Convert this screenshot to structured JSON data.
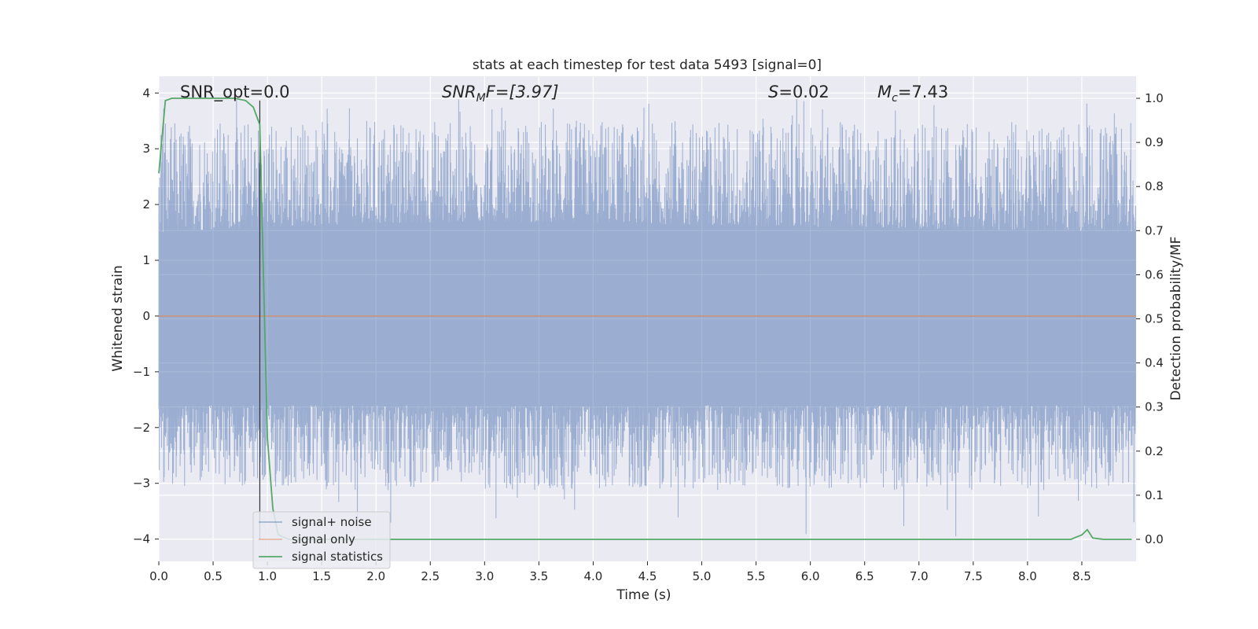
{
  "chart_data": {
    "type": "line",
    "title": "stats at each timestep for test data 5493 [signal=0]",
    "xlabel": "Time (s)",
    "ylabel": "Whitened strain",
    "ylabel_right": "Detection probability/MF",
    "xlim": [
      0.0,
      9.0
    ],
    "ylim": [
      -4.4,
      4.3
    ],
    "ylim_right": [
      -0.05,
      1.05
    ],
    "x_ticks": [
      "0.0",
      "0.5",
      "1.0",
      "1.5",
      "2.0",
      "2.5",
      "3.0",
      "3.5",
      "4.0",
      "4.5",
      "5.0",
      "5.5",
      "6.0",
      "6.5",
      "7.0",
      "7.5",
      "8.0",
      "8.5"
    ],
    "y_ticks": [
      "4",
      "3",
      "2",
      "1",
      "0",
      "−1",
      "−2",
      "−3",
      "−4"
    ],
    "y_ticks_right": [
      "1.0",
      "0.9",
      "0.8",
      "0.7",
      "0.6",
      "0.5",
      "0.4",
      "0.3",
      "0.2",
      "0.1",
      "0.0"
    ],
    "grid": true,
    "legend_position": "lower-left",
    "annotations": {
      "snr_opt": "SNR_opt=0.0",
      "snr_mf": "SNR",
      "snr_mf_sub": "M",
      "snr_mf_tail": "F=[3.97]",
      "s_stat": "S",
      "s_stat_val": "=0.02",
      "mc": "M",
      "mc_sub": "c",
      "mc_val": "=7.43"
    },
    "vertical_marker_x": 0.93,
    "series": [
      {
        "name": "signal+ noise",
        "color": "#4c72b0",
        "axis": "left",
        "kind": "noise",
        "envelope_upper": [
          [
            0.0,
            1.5
          ],
          [
            1.0,
            1.6
          ],
          [
            3.0,
            1.7
          ],
          [
            6.0,
            1.6
          ],
          [
            9.0,
            1.5
          ]
        ],
        "envelope_lower": [
          [
            0.0,
            -1.6
          ],
          [
            9.0,
            -1.6
          ]
        ],
        "max_peak": 3.9,
        "min_trough": -4.0
      },
      {
        "name": "signal only",
        "color": "#dd8452",
        "axis": "left",
        "x": [
          0.0,
          9.0
        ],
        "y": [
          0.0,
          0.0
        ]
      },
      {
        "name": "signal statistics",
        "color": "#55a868",
        "axis": "right",
        "x": [
          0.0,
          0.06,
          0.12,
          0.2,
          0.3,
          0.5,
          0.7,
          0.8,
          0.87,
          0.93,
          1.0,
          1.05,
          1.1,
          1.2,
          1.5,
          2.0,
          4.0,
          6.0,
          8.0,
          8.4,
          8.45,
          8.5,
          8.55,
          8.6,
          8.7,
          8.8,
          8.96
        ],
        "y": [
          0.83,
          0.995,
          1.0,
          1.0,
          1.0,
          1.0,
          1.0,
          0.995,
          0.98,
          0.94,
          0.23,
          0.07,
          0.01,
          0.0,
          0.0,
          0.0,
          0.0,
          0.0,
          0.0,
          0.0,
          0.005,
          0.01,
          0.022,
          0.003,
          0.0,
          0.0,
          0.0
        ]
      }
    ]
  }
}
